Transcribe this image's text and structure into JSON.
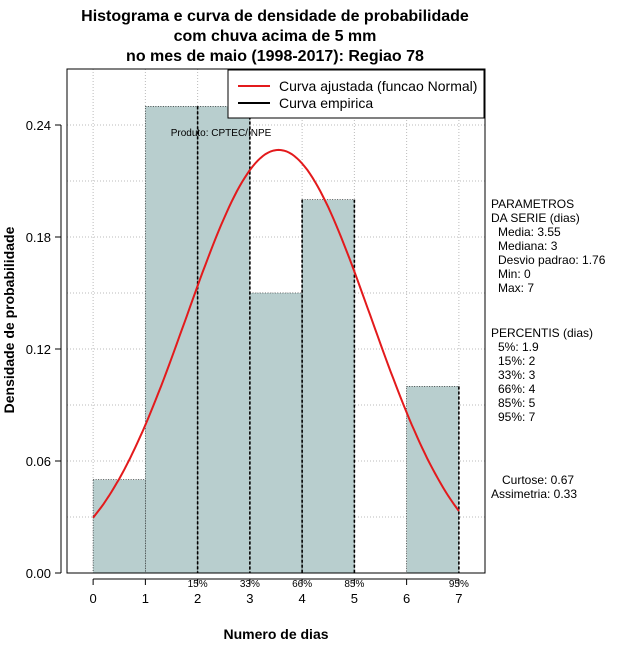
{
  "colors": {
    "bar_fill": "#b8cece",
    "normal_curve": "#e31a1c",
    "empirical": "#000000",
    "grid": "#bbbbbb"
  },
  "chart_data": {
    "type": "bar",
    "title": [
      "Histograma e curva de densidade de probabilidade",
      "com chuva acima de 5 mm",
      "no mes de maio (1998-2017): Regiao 78"
    ],
    "xlabel": "Numero de dias",
    "ylabel": "Densidade de probabilidade",
    "xlim": [
      -0.5,
      7.5
    ],
    "ylim": [
      0,
      0.27
    ],
    "x_ticks": [
      "0",
      "1",
      "2",
      "3",
      "4",
      "5",
      "6",
      "7"
    ],
    "y_ticks": [
      "0.00",
      "0.06",
      "0.12",
      "0.18",
      "0.24"
    ],
    "bins": [
      {
        "from": 0,
        "to": 1,
        "density": 0.05
      },
      {
        "from": 1,
        "to": 2,
        "density": 0.25
      },
      {
        "from": 2,
        "to": 3,
        "density": 0.25
      },
      {
        "from": 3,
        "to": 4,
        "density": 0.15
      },
      {
        "from": 4,
        "to": 5,
        "density": 0.2
      },
      {
        "from": 5,
        "to": 6,
        "density": 0.0
      },
      {
        "from": 6,
        "to": 7,
        "density": 0.1
      }
    ],
    "normal_fit": {
      "mean": 3.55,
      "sd": 1.76,
      "x_range": [
        0,
        7
      ]
    },
    "percentile_lines": [
      {
        "label": "15%",
        "x": 2
      },
      {
        "label": "33%",
        "x": 3
      },
      {
        "label": "66%",
        "x": 4
      },
      {
        "label": "85%",
        "x": 5
      },
      {
        "label": "95%",
        "x": 7
      }
    ],
    "legend": [
      "Curva ajustada (funcao Normal)",
      "Curva empirica"
    ],
    "legend_position": "top-right",
    "grid": true,
    "annotation": "Produto: CPTEC/INPE"
  },
  "side_panel": {
    "params_title_1": "PARAMETROS",
    "params_title_2": "DA SERIE (dias)",
    "params": [
      "Media: 3.55",
      "Mediana: 3",
      "Desvio padrao: 1.76",
      "Min: 0",
      "Max: 7"
    ],
    "pct_title": "PERCENTIS (dias)",
    "percentis": [
      "5%: 1.9",
      "15%: 2",
      "33%: 3",
      "66%: 4",
      "85%: 5",
      "95%: 7"
    ],
    "curtose": "Curtose: 0.67",
    "assimetria": "Assimetria: 0.33"
  }
}
